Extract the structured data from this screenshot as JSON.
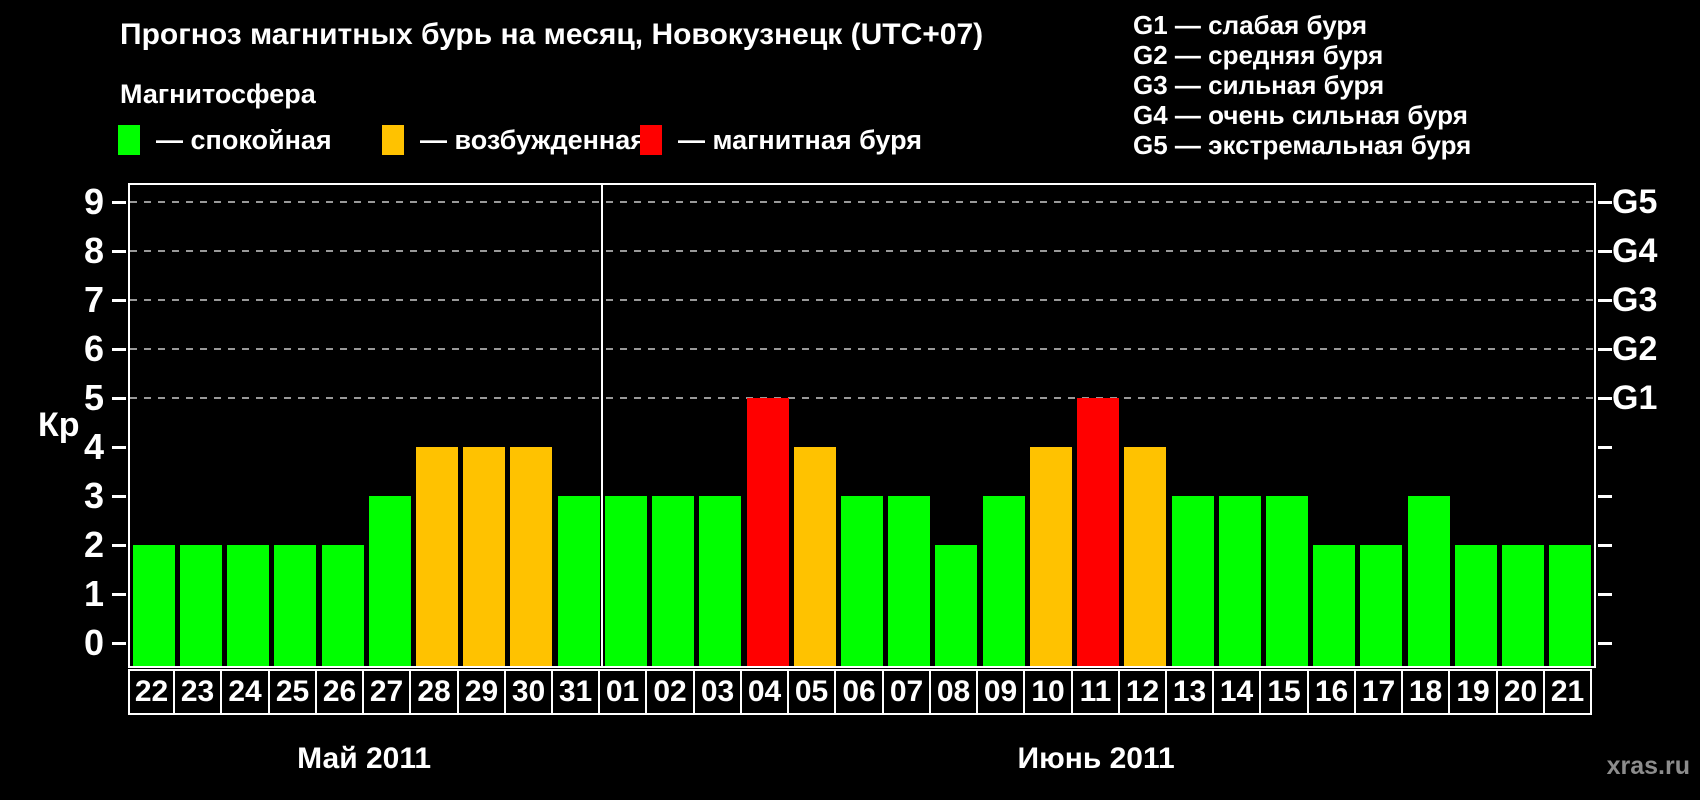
{
  "header": {
    "title": "Прогноз магнитных бурь на месяц, Новокузнецк (UTC+07)",
    "subtitle": "Магнитосфера",
    "magnetosphere_legend": [
      {
        "state": "quiet",
        "label": "— спокойная",
        "color": "#00ff00",
        "x": 118
      },
      {
        "state": "excited",
        "label": "— возбужденная",
        "color": "#ffc200",
        "x": 382
      },
      {
        "state": "storm",
        "label": "— магнитная буря",
        "color": "#ff0000",
        "x": 640
      }
    ],
    "g_scale_legend": [
      "G1 — слабая буря",
      "G2 — средняя буря",
      "G3 — сильная буря",
      "G4 — очень сильная буря",
      "G5 — экстремальная буря"
    ]
  },
  "chart_data": {
    "type": "bar",
    "ylabel": "Кр",
    "ylim": [
      0,
      9
    ],
    "yticks": [
      0,
      1,
      2,
      3,
      4,
      5,
      6,
      7,
      8,
      9
    ],
    "right_axis_ticks": [
      {
        "value": 5,
        "label": "G1"
      },
      {
        "value": 6,
        "label": "G2"
      },
      {
        "value": 7,
        "label": "G3"
      },
      {
        "value": 8,
        "label": "G4"
      },
      {
        "value": 9,
        "label": "G5"
      }
    ],
    "grid_levels": [
      5,
      6,
      7,
      8,
      9
    ],
    "state_colors": {
      "quiet": "#00ff00",
      "excited": "#ffc200",
      "storm": "#ff0000"
    },
    "months": [
      {
        "label": "Май 2011",
        "days": [
          {
            "date": "22",
            "kp": 2,
            "state": "quiet"
          },
          {
            "date": "23",
            "kp": 2,
            "state": "quiet"
          },
          {
            "date": "24",
            "kp": 2,
            "state": "quiet"
          },
          {
            "date": "25",
            "kp": 2,
            "state": "quiet"
          },
          {
            "date": "26",
            "kp": 2,
            "state": "quiet"
          },
          {
            "date": "27",
            "kp": 3,
            "state": "quiet"
          },
          {
            "date": "28",
            "kp": 4,
            "state": "excited"
          },
          {
            "date": "29",
            "kp": 4,
            "state": "excited"
          },
          {
            "date": "30",
            "kp": 4,
            "state": "excited"
          },
          {
            "date": "31",
            "kp": 3,
            "state": "quiet"
          }
        ]
      },
      {
        "label": "Июнь 2011",
        "days": [
          {
            "date": "01",
            "kp": 3,
            "state": "quiet"
          },
          {
            "date": "02",
            "kp": 3,
            "state": "quiet"
          },
          {
            "date": "03",
            "kp": 3,
            "state": "quiet"
          },
          {
            "date": "04",
            "kp": 5,
            "state": "storm"
          },
          {
            "date": "05",
            "kp": 4,
            "state": "excited"
          },
          {
            "date": "06",
            "kp": 3,
            "state": "quiet"
          },
          {
            "date": "07",
            "kp": 3,
            "state": "quiet"
          },
          {
            "date": "08",
            "kp": 2,
            "state": "quiet"
          },
          {
            "date": "09",
            "kp": 3,
            "state": "quiet"
          },
          {
            "date": "10",
            "kp": 4,
            "state": "excited"
          },
          {
            "date": "11",
            "kp": 5,
            "state": "storm"
          },
          {
            "date": "12",
            "kp": 4,
            "state": "excited"
          },
          {
            "date": "13",
            "kp": 3,
            "state": "quiet"
          },
          {
            "date": "14",
            "kp": 3,
            "state": "quiet"
          },
          {
            "date": "15",
            "kp": 3,
            "state": "quiet"
          },
          {
            "date": "16",
            "kp": 2,
            "state": "quiet"
          },
          {
            "date": "17",
            "kp": 2,
            "state": "quiet"
          },
          {
            "date": "18",
            "kp": 3,
            "state": "quiet"
          },
          {
            "date": "19",
            "kp": 2,
            "state": "quiet"
          },
          {
            "date": "20",
            "kp": 2,
            "state": "quiet"
          },
          {
            "date": "21",
            "kp": 2,
            "state": "quiet"
          }
        ]
      }
    ]
  },
  "footer": {
    "watermark": "xras.ru"
  }
}
